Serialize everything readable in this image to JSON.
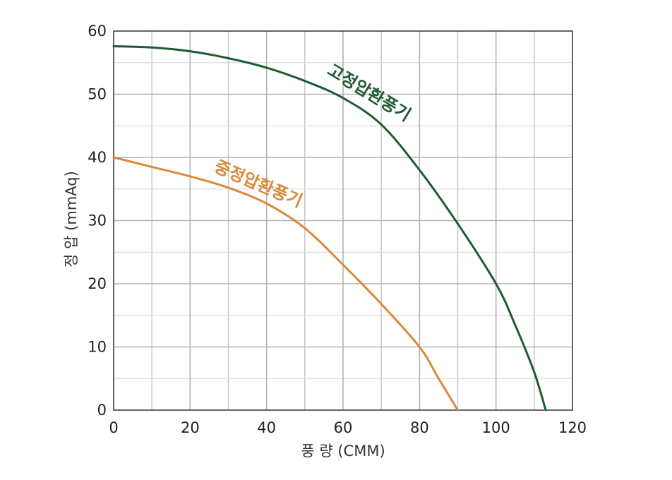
{
  "chart_data": {
    "type": "line",
    "xlabel": "풍 량 (CMM)",
    "ylabel": "정 압 (mmAq)",
    "xlim": [
      0,
      120
    ],
    "ylim": [
      0,
      60
    ],
    "x_ticks": [
      0,
      20,
      40,
      60,
      80,
      100,
      120
    ],
    "y_ticks": [
      0,
      10,
      20,
      30,
      40,
      50,
      60
    ],
    "minor_grid_step": 10,
    "grid": true,
    "legend": "inline labels on curves",
    "series": [
      {
        "name": "고정압환풍기",
        "color": "#1f5a33",
        "x": [
          0,
          10,
          20,
          30,
          40,
          50,
          60,
          70,
          80,
          90,
          100,
          105,
          110,
          113
        ],
        "y": [
          57.6,
          57.4,
          56.8,
          55.7,
          54.2,
          52.1,
          49.4,
          45.2,
          38.0,
          29.5,
          20.0,
          13.5,
          6.0,
          0
        ]
      },
      {
        "name": "중정압환풍기",
        "color": "#d9893a",
        "x": [
          0,
          10,
          20,
          30,
          40,
          50,
          60,
          70,
          80,
          85,
          90
        ],
        "y": [
          40.0,
          38.5,
          37.0,
          35.2,
          32.7,
          28.8,
          23.0,
          16.8,
          10.0,
          5.0,
          0
        ]
      }
    ]
  }
}
